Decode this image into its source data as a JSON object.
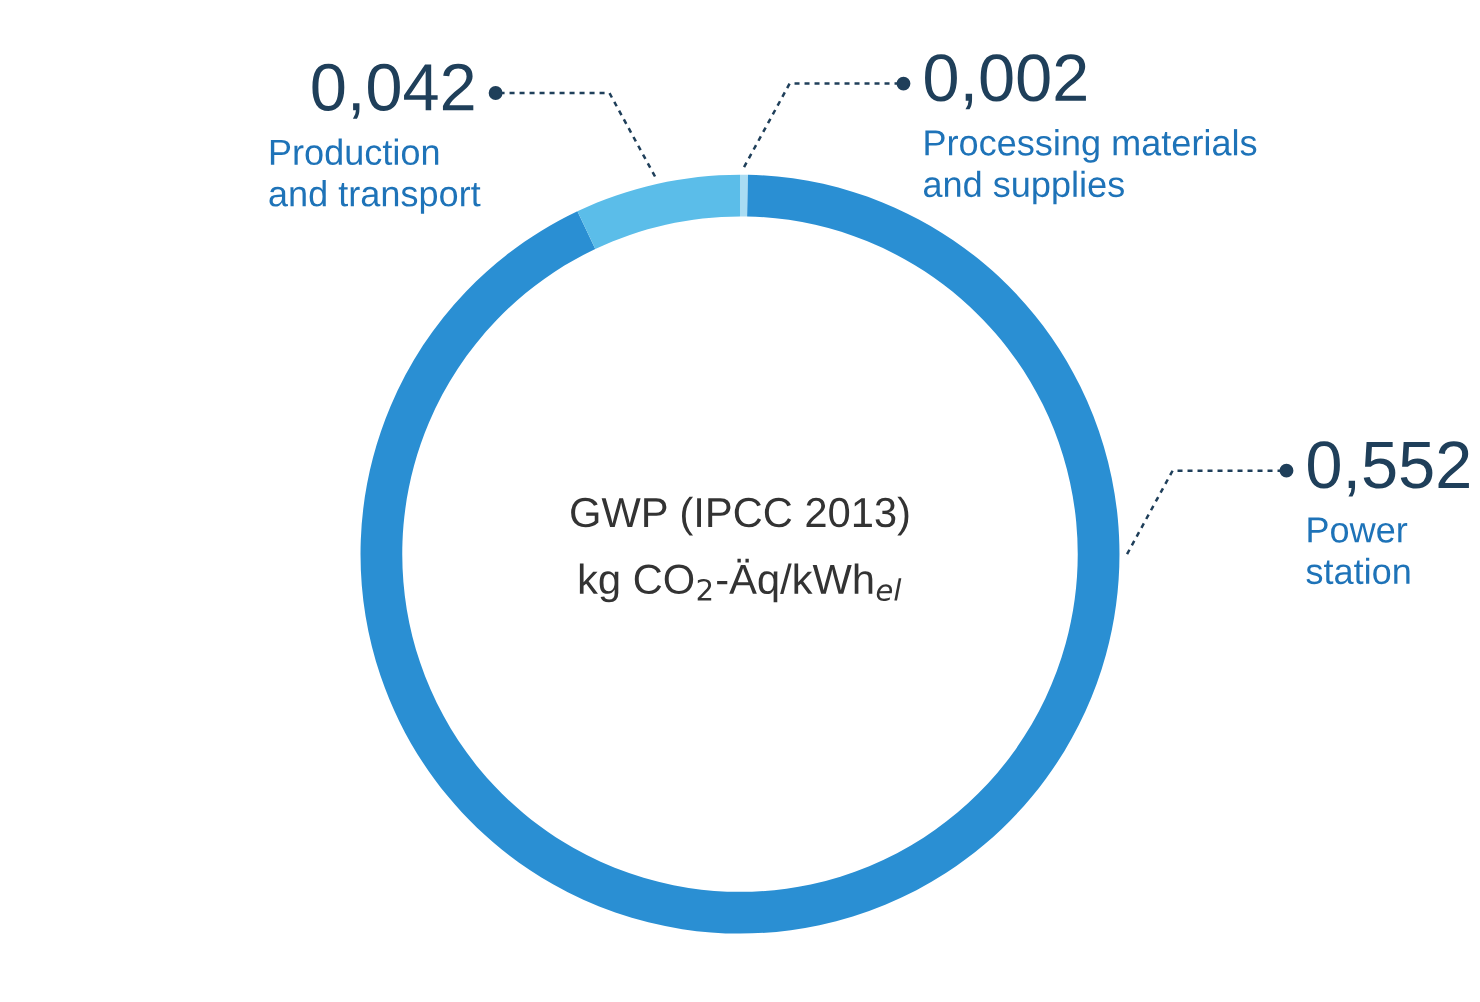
{
  "chart_data": {
    "type": "donut",
    "title": "GWP (IPCC 2013)",
    "subtitle": "kg CO$_{2}$-Äq/kWh$_{el}$",
    "categories": [
      "Processing materials\nand supplies",
      "Power\nstation",
      "Production\nand transport"
    ],
    "values": [
      0.002,
      0.552,
      0.042
    ],
    "value_labels": [
      "0,002",
      "0,552",
      "0,042"
    ],
    "colors": [
      "#a9dcf3",
      "#2a8fd3",
      "#5bbde9"
    ]
  }
}
